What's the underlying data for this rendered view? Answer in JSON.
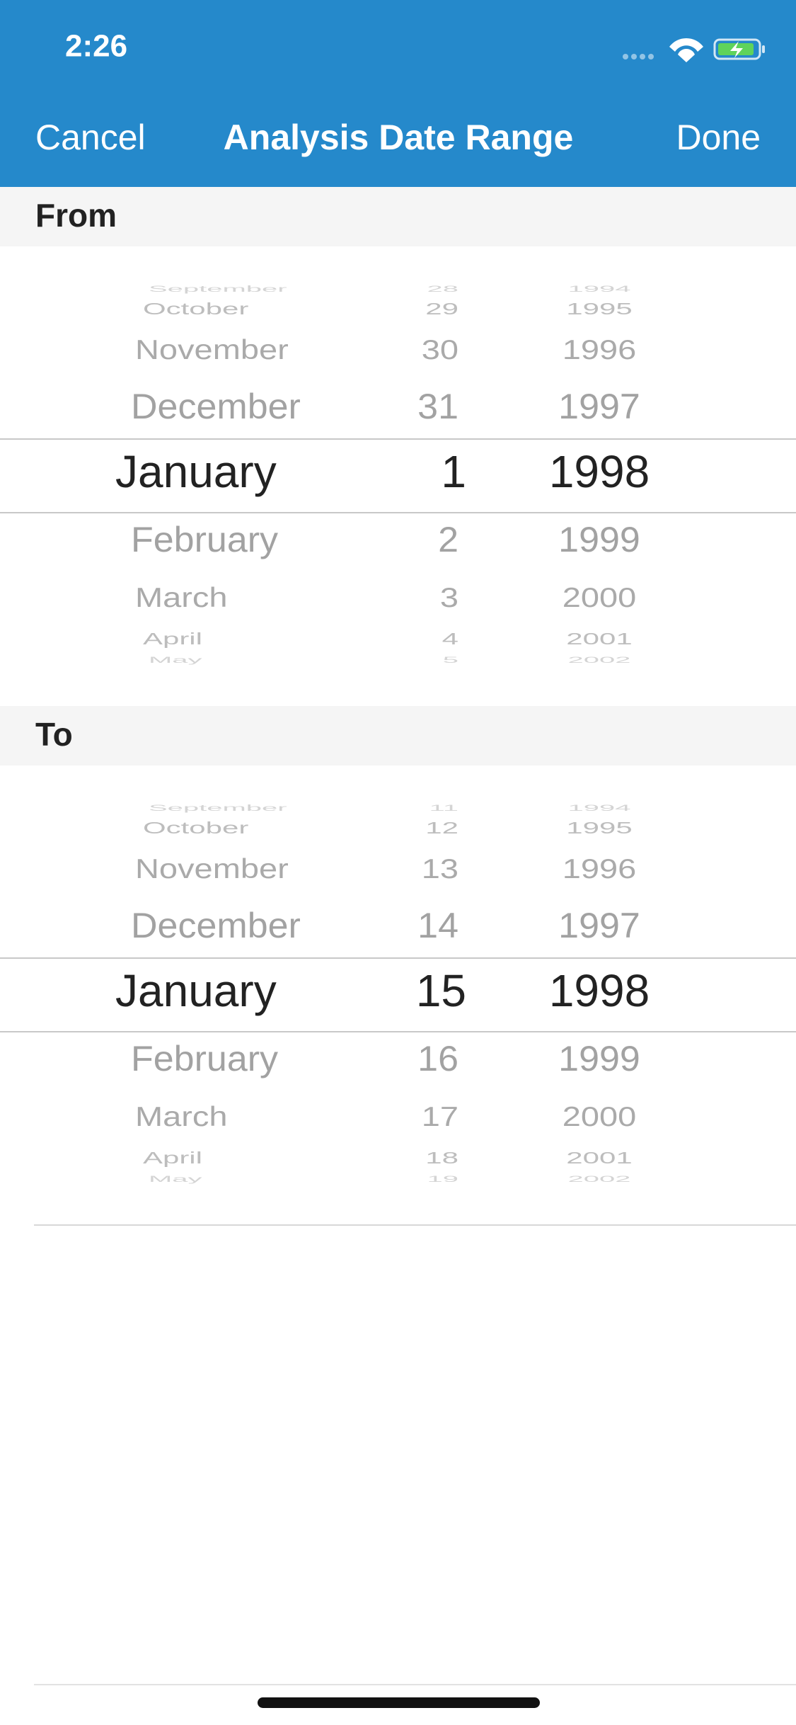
{
  "status": {
    "time": "2:26"
  },
  "nav": {
    "cancel": "Cancel",
    "title": "Analysis Date Range",
    "done": "Done"
  },
  "sections": [
    {
      "label": "From",
      "picker": {
        "months": [
          "September",
          "October",
          "November",
          "December",
          "January",
          "February",
          "March",
          "April",
          "May"
        ],
        "days": [
          "28",
          "29",
          "30",
          "31",
          "1",
          "2",
          "3",
          "4",
          "5"
        ],
        "years": [
          "1994",
          "1995",
          "1996",
          "1997",
          "1998",
          "1999",
          "2000",
          "2001",
          "2002"
        ]
      }
    },
    {
      "label": "To",
      "picker": {
        "months": [
          "September",
          "October",
          "November",
          "December",
          "January",
          "February",
          "March",
          "April",
          "May"
        ],
        "days": [
          "11",
          "12",
          "13",
          "14",
          "15",
          "16",
          "17",
          "18",
          "19"
        ],
        "years": [
          "1994",
          "1995",
          "1996",
          "1997",
          "1998",
          "1999",
          "2000",
          "2001",
          "2002"
        ]
      }
    }
  ]
}
